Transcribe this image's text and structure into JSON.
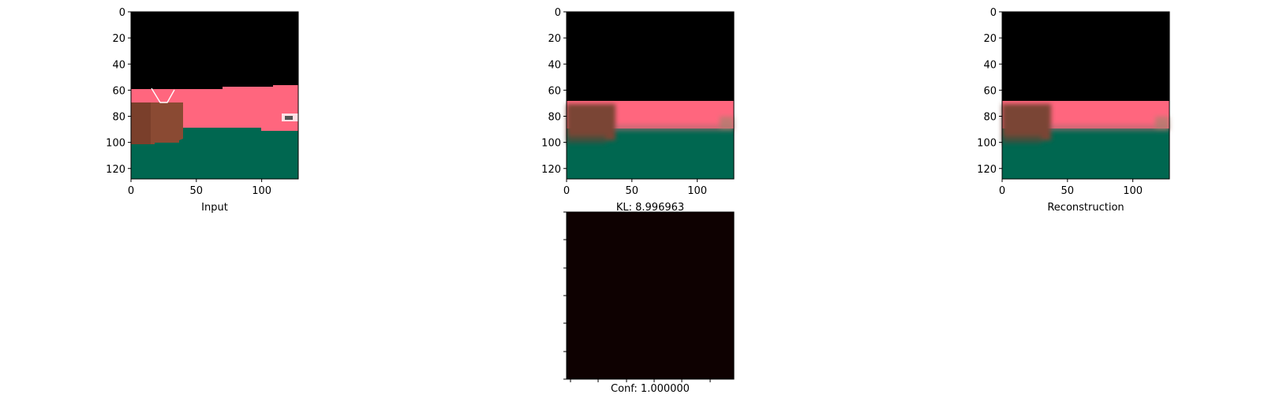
{
  "chart_data": [
    {
      "type": "image",
      "xlabel": "Input",
      "xticks": [
        0,
        50,
        100
      ],
      "yticks": [
        0,
        20,
        40,
        60,
        80,
        100,
        120
      ],
      "xlim": [
        0,
        128
      ],
      "ylim": [
        128,
        0
      ],
      "colors": {
        "sky": "#000000",
        "wall": "#ff667e",
        "floor": "#006750",
        "object": "#8a4a33"
      }
    },
    {
      "type": "image",
      "xlabel": "KL: 8.996963",
      "xticks": [
        0,
        50,
        100
      ],
      "yticks": [
        0,
        20,
        40,
        60,
        80,
        100,
        120
      ],
      "xlim": [
        0,
        128
      ],
      "ylim": [
        128,
        0
      ],
      "colors": {
        "sky": "#000000",
        "wall": "#ff667e",
        "floor": "#006750",
        "object": "#7a4535"
      }
    },
    {
      "type": "image",
      "xlabel": "Reconstruction",
      "xticks": [
        0,
        50,
        100
      ],
      "yticks": [
        0,
        20,
        40,
        60,
        80,
        100,
        120
      ],
      "xlim": [
        0,
        128
      ],
      "ylim": [
        128,
        0
      ],
      "colors": {
        "sky": "#000000",
        "wall": "#ff667e",
        "floor": "#006750",
        "object": "#7a4535"
      }
    },
    {
      "type": "heatmap",
      "xlabel": "Conf: 1.000000",
      "values": [
        [
          1.0
        ]
      ],
      "colors": {
        "fill": "#0e0101"
      }
    }
  ]
}
